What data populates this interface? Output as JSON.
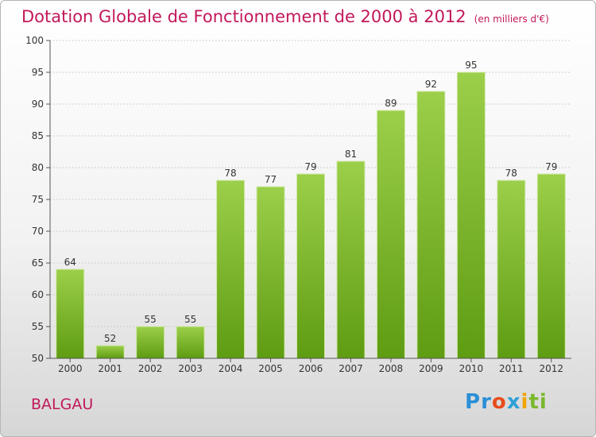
{
  "header": {
    "title": "Dotation Globale de Fonctionnement de 2000 à 2012",
    "subtitle": "(en milliers d'€)"
  },
  "footer": {
    "commune": "BALGAU",
    "logo": [
      "P",
      "r",
      "o",
      "x",
      "i",
      "ti"
    ]
  },
  "colors": {
    "title": "#c2185b",
    "bar_top": "#9ccf4a",
    "bar_bottom": "#5e9c12",
    "axis": "#555555",
    "grid": "#cfcfcf"
  },
  "chart_data": {
    "type": "bar",
    "title": "Dotation Globale de Fonctionnement de 2000 à 2012",
    "subtitle": "(en milliers d'€)",
    "categories": [
      "2000",
      "2001",
      "2002",
      "2003",
      "2004",
      "2005",
      "2006",
      "2007",
      "2008",
      "2009",
      "2010",
      "2011",
      "2012"
    ],
    "values": [
      64,
      52,
      55,
      55,
      78,
      77,
      79,
      81,
      89,
      92,
      95,
      78,
      79
    ],
    "ylim": [
      50,
      100
    ],
    "yticks": [
      50,
      55,
      60,
      65,
      70,
      75,
      80,
      85,
      90,
      95,
      100
    ],
    "grid": true,
    "data_labels": true
  }
}
